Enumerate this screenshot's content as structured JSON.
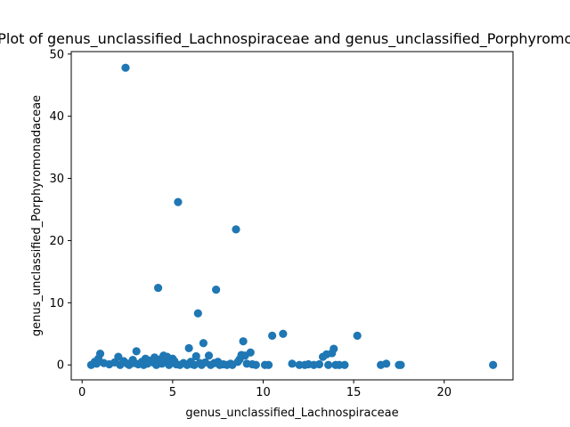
{
  "chart_data": {
    "type": "scatter",
    "title": "Scatter Plot of genus_unclassified_Lachnospiraceae and genus_unclassified_Porphyromonadaceae",
    "xlabel": "genus_unclassified_Lachnospiraceae",
    "ylabel": "genus_unclassified_Porphyromonadaceae",
    "xlim": [
      -0.6,
      23.8
    ],
    "ylim": [
      -2.4,
      50.4
    ],
    "xticks": [
      0,
      5,
      10,
      15,
      20
    ],
    "yticks": [
      0,
      10,
      20,
      30,
      40,
      50
    ],
    "grid": false,
    "marker_color": "#1f77b4",
    "points": [
      [
        2.4,
        47.8
      ],
      [
        5.3,
        26.2
      ],
      [
        8.5,
        21.8
      ],
      [
        4.2,
        12.4
      ],
      [
        7.4,
        12.1
      ],
      [
        6.4,
        8.3
      ],
      [
        6.7,
        3.5
      ],
      [
        8.9,
        3.8
      ],
      [
        9.3,
        2.0
      ],
      [
        5.9,
        2.7
      ],
      [
        11.1,
        5.0
      ],
      [
        10.5,
        4.7
      ],
      [
        15.2,
        4.7
      ],
      [
        13.9,
        2.6
      ],
      [
        13.5,
        1.7
      ],
      [
        13.3,
        1.3
      ],
      [
        13.8,
        1.9
      ],
      [
        1.0,
        1.8
      ],
      [
        3.0,
        2.2
      ],
      [
        4.5,
        1.5
      ],
      [
        4.0,
        1.2
      ],
      [
        5.0,
        1.0
      ],
      [
        2.0,
        1.3
      ],
      [
        7.0,
        1.5
      ],
      [
        8.8,
        1.6
      ],
      [
        9.0,
        1.5
      ],
      [
        6.3,
        1.4
      ],
      [
        4.7,
        1.3
      ],
      [
        3.5,
        1.0
      ],
      [
        2.8,
        0.8
      ],
      [
        0.5,
        0.0
      ],
      [
        0.7,
        0.5
      ],
      [
        0.8,
        0.2
      ],
      [
        0.9,
        1.0
      ],
      [
        1.2,
        0.3
      ],
      [
        1.5,
        0.1
      ],
      [
        1.8,
        0.4
      ],
      [
        2.1,
        0.0
      ],
      [
        2.3,
        0.6
      ],
      [
        2.5,
        0.2
      ],
      [
        2.6,
        0.0
      ],
      [
        2.9,
        0.3
      ],
      [
        3.1,
        0.1
      ],
      [
        3.3,
        0.5
      ],
      [
        3.4,
        0.0
      ],
      [
        3.6,
        0.2
      ],
      [
        3.7,
        0.7
      ],
      [
        3.9,
        0.4
      ],
      [
        4.1,
        0.0
      ],
      [
        4.3,
        0.9
      ],
      [
        4.4,
        0.2
      ],
      [
        4.6,
        0.5
      ],
      [
        4.8,
        0.0
      ],
      [
        4.9,
        0.3
      ],
      [
        5.1,
        0.6
      ],
      [
        5.2,
        0.1
      ],
      [
        5.4,
        0.0
      ],
      [
        5.6,
        0.3
      ],
      [
        5.8,
        0.0
      ],
      [
        6.0,
        0.5
      ],
      [
        6.1,
        0.1
      ],
      [
        6.2,
        0.0
      ],
      [
        6.5,
        0.3
      ],
      [
        6.6,
        0.0
      ],
      [
        6.8,
        0.4
      ],
      [
        7.1,
        0.0
      ],
      [
        7.3,
        0.3
      ],
      [
        7.5,
        0.5
      ],
      [
        7.6,
        0.0
      ],
      [
        7.8,
        0.1
      ],
      [
        8.0,
        0.0
      ],
      [
        8.2,
        0.2
      ],
      [
        8.3,
        0.0
      ],
      [
        8.6,
        0.5
      ],
      [
        8.7,
        0.9
      ],
      [
        9.1,
        0.2
      ],
      [
        9.4,
        0.1
      ],
      [
        9.6,
        0.0
      ],
      [
        10.1,
        0.0
      ],
      [
        10.3,
        0.0
      ],
      [
        11.6,
        0.2
      ],
      [
        12.0,
        0.0
      ],
      [
        12.3,
        0.0
      ],
      [
        12.5,
        0.1
      ],
      [
        12.8,
        0.0
      ],
      [
        13.1,
        0.1
      ],
      [
        13.6,
        0.0
      ],
      [
        14.0,
        0.0
      ],
      [
        14.2,
        0.0
      ],
      [
        14.5,
        0.0
      ],
      [
        16.5,
        0.0
      ],
      [
        16.8,
        0.2
      ],
      [
        17.5,
        0.0
      ],
      [
        17.6,
        0.0
      ],
      [
        22.7,
        0.0
      ]
    ]
  }
}
